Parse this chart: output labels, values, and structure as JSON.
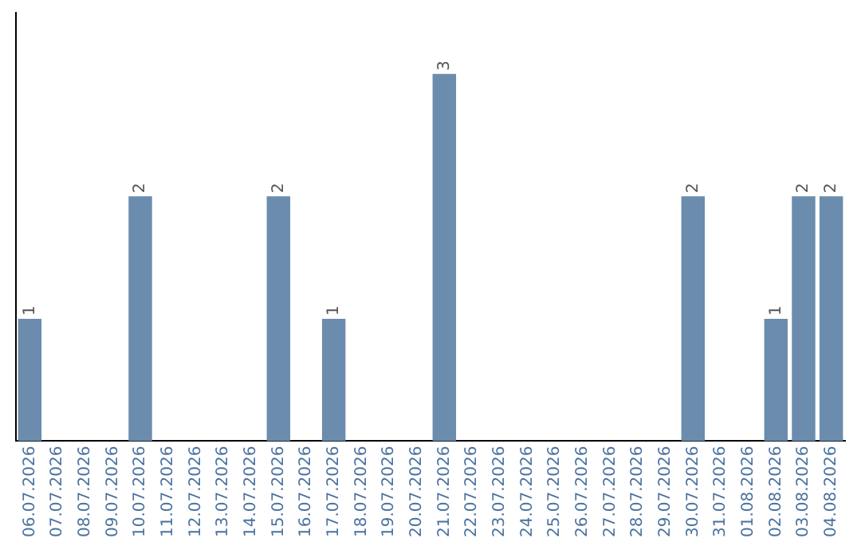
{
  "chart_data": {
    "type": "bar",
    "categories": [
      "06.07.2026",
      "07.07.2026",
      "08.07.2026",
      "09.07.2026",
      "10.07.2026",
      "11.07.2026",
      "12.07.2026",
      "13.07.2026",
      "14.07.2026",
      "15.07.2026",
      "16.07.2026",
      "17.07.2026",
      "18.07.2026",
      "19.07.2026",
      "20.07.2026",
      "21.07.2026",
      "22.07.2026",
      "23.07.2026",
      "24.07.2026",
      "25.07.2026",
      "26.07.2026",
      "27.07.2026",
      "28.07.2026",
      "29.07.2026",
      "30.07.2026",
      "31.07.2026",
      "01.08.2026",
      "02.08.2026",
      "03.08.2026",
      "04.08.2026"
    ],
    "values": [
      1,
      0,
      0,
      0,
      2,
      0,
      0,
      0,
      0,
      2,
      0,
      1,
      0,
      0,
      0,
      3,
      0,
      0,
      0,
      0,
      0,
      0,
      0,
      0,
      2,
      0,
      0,
      1,
      2,
      2
    ],
    "value_labels": [
      "1",
      null,
      null,
      null,
      "2",
      null,
      null,
      null,
      null,
      "2",
      null,
      "1",
      null,
      null,
      null,
      "3",
      null,
      null,
      null,
      null,
      null,
      null,
      null,
      null,
      "2",
      null,
      null,
      "1",
      "2",
      "2"
    ],
    "color": "#6b8cad",
    "grid": false,
    "legend": false,
    "tick_labels": "x"
  }
}
